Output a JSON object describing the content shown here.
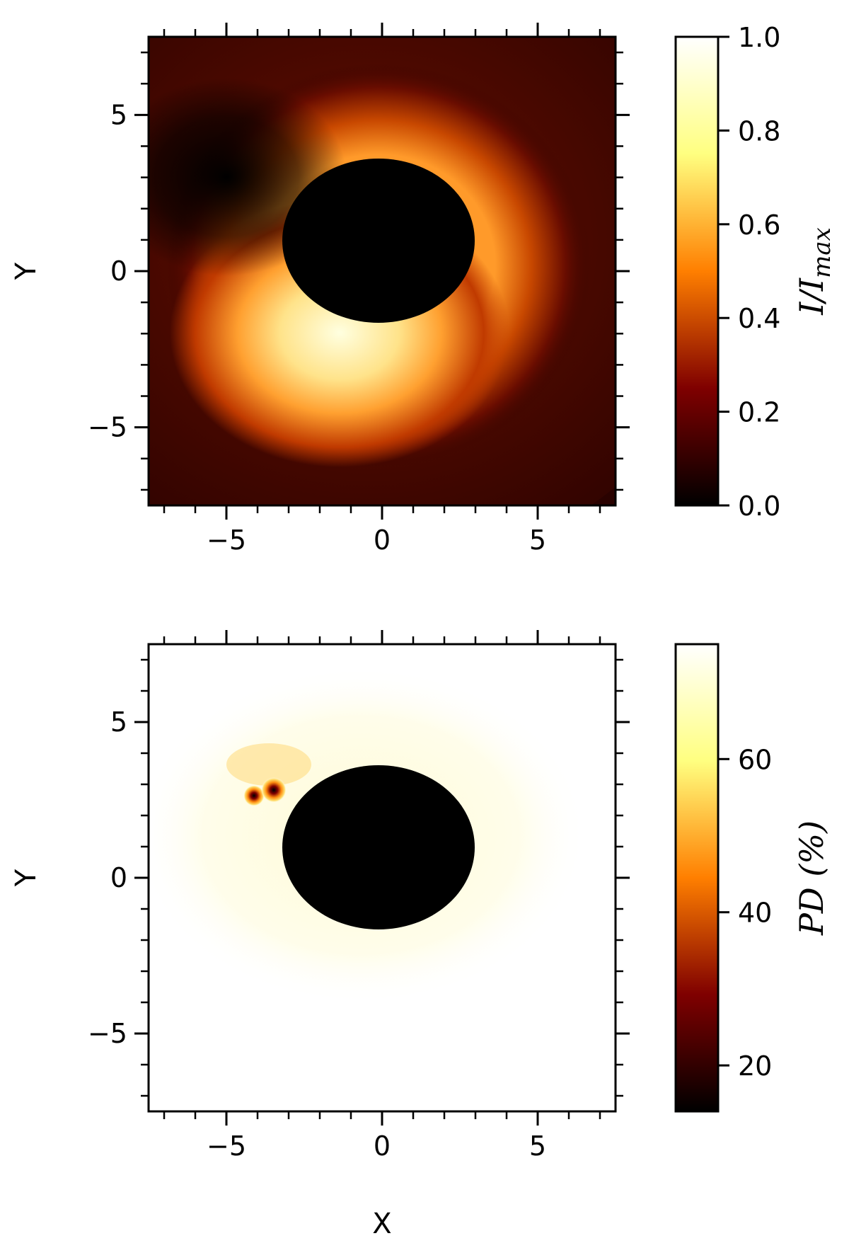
{
  "chart_data": [
    {
      "type": "heatmap",
      "title": "",
      "xlabel": "",
      "ylabel": "Y",
      "xlim": [
        -7.5,
        7.5
      ],
      "ylim": [
        -7.5,
        7.5
      ],
      "x_ticks": [
        -5,
        0,
        5
      ],
      "y_ticks": [
        -5,
        0,
        5
      ],
      "x_tick_labels": [
        "−5",
        "0",
        "5"
      ],
      "y_tick_labels": [
        "−5",
        "0",
        "5"
      ],
      "colormap": "afmhot",
      "dark_region": {
        "center": [
          -0.1,
          1.0
        ],
        "radius_x": 3.1,
        "radius_y": 2.6,
        "color": "#000000"
      },
      "bright_feature": {
        "center": [
          -1.2,
          -2.3
        ],
        "max_value": 1.0
      },
      "dark_lobe": {
        "center": [
          -4.3,
          3.2
        ]
      },
      "colorbar": {
        "label": "I/I",
        "label_subscript": "max",
        "range": [
          0.0,
          1.0
        ],
        "ticks": [
          0.0,
          0.2,
          0.4,
          0.6,
          0.8,
          1.0
        ],
        "tick_labels": [
          "0.0",
          "0.2",
          "0.4",
          "0.6",
          "0.8",
          "1.0"
        ]
      }
    },
    {
      "type": "heatmap",
      "title": "",
      "xlabel": "X",
      "ylabel": "Y",
      "xlim": [
        -7.5,
        7.5
      ],
      "ylim": [
        -7.5,
        7.5
      ],
      "x_ticks": [
        -5,
        0,
        5
      ],
      "y_ticks": [
        -5,
        0,
        5
      ],
      "x_tick_labels": [
        "−5",
        "0",
        "5"
      ],
      "y_tick_labels": [
        "−5",
        "0",
        "5"
      ],
      "colormap": "afmhot",
      "dark_region": {
        "center": [
          -0.1,
          1.0
        ],
        "radius_x": 3.1,
        "radius_y": 2.6,
        "color": "#000000"
      },
      "low_pd_spots": [
        {
          "center": [
            -4.1,
            2.6
          ],
          "value": 15
        },
        {
          "center": [
            -3.5,
            2.8
          ],
          "value": 15
        }
      ],
      "colorbar": {
        "label": "PD (%)",
        "range": [
          14,
          75
        ],
        "ticks": [
          20,
          40,
          60
        ],
        "tick_labels": [
          "20",
          "40",
          "60"
        ]
      }
    }
  ],
  "colors": {
    "afmhot": [
      "#000000",
      "#7f0000",
      "#ff7f00",
      "#ffff80",
      "#ffffff"
    ],
    "axes": "#000000",
    "background": "#ffffff"
  }
}
